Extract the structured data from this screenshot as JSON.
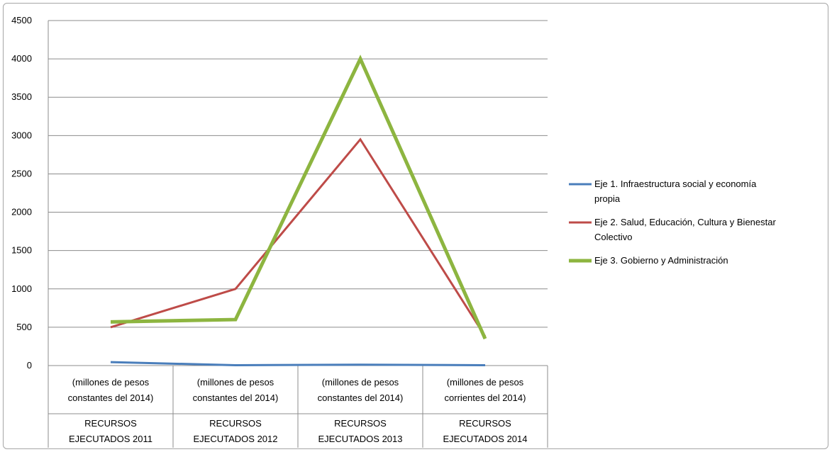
{
  "chart_data": {
    "type": "line",
    "title": "",
    "xlabel": "",
    "ylabel": "",
    "ylim": [
      0,
      4500
    ],
    "yticks": [
      0,
      500,
      1000,
      1500,
      2000,
      2500,
      3000,
      3500,
      4000,
      4500
    ],
    "grid": true,
    "legend_position": "right",
    "categories": [
      {
        "sub": [
          "(millones de pesos",
          "constantes del 2014)"
        ],
        "group": [
          "RECURSOS",
          "EJECUTADOS  2011"
        ]
      },
      {
        "sub": [
          "(millones de pesos",
          "constantes del 2014)"
        ],
        "group": [
          "RECURSOS",
          "EJECUTADOS  2012"
        ]
      },
      {
        "sub": [
          "(millones de pesos",
          "constantes del 2014)"
        ],
        "group": [
          "RECURSOS",
          "EJECUTADOS  2013"
        ]
      },
      {
        "sub": [
          "(millones de pesos",
          "corrientes del 2014)"
        ],
        "group": [
          "RECURSOS",
          "EJECUTADOS  2014"
        ]
      }
    ],
    "series": [
      {
        "name_lines": [
          "Eje 1. Infraestructura social y economía",
          "propia"
        ],
        "color": "#4a7ebb",
        "width": 3,
        "values": [
          45,
          5,
          12,
          5
        ]
      },
      {
        "name_lines": [
          "Eje 2. Salud, Educación, Cultura y Bienestar",
          "Colectivo"
        ],
        "color": "#be4b48",
        "width": 3,
        "values": [
          500,
          1000,
          2950,
          380
        ]
      },
      {
        "name_lines": [
          "Eje 3. Gobierno y Administración"
        ],
        "color": "#8db540",
        "width": 5,
        "values": [
          570,
          600,
          4000,
          350
        ]
      }
    ]
  }
}
